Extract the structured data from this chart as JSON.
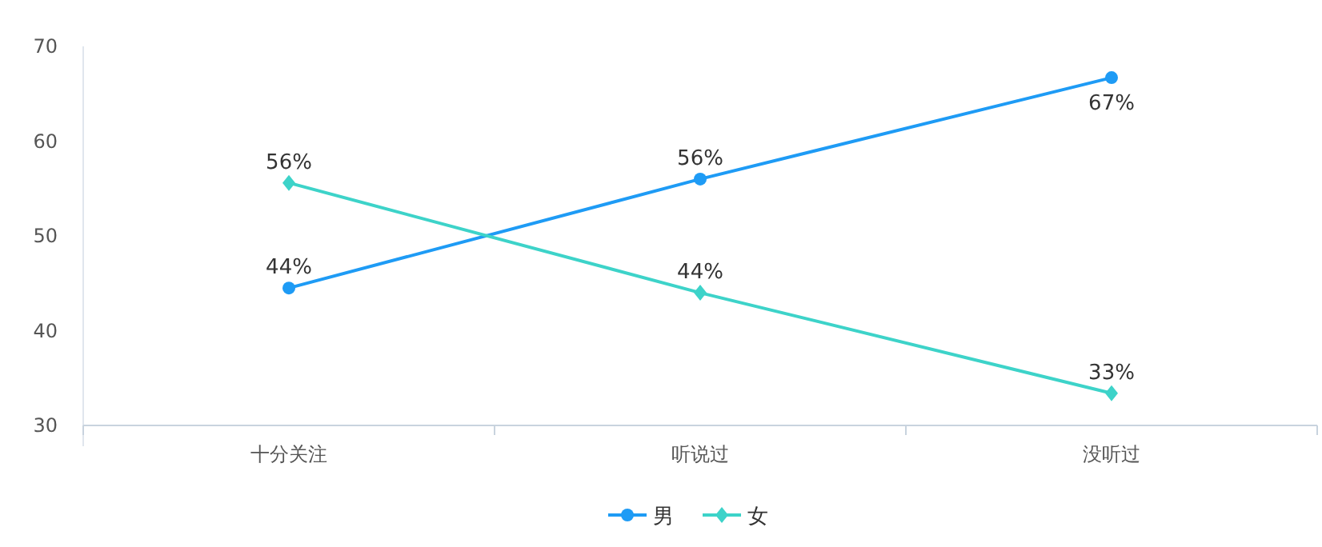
{
  "chart_data": {
    "type": "line",
    "categories": [
      "十分关注",
      "听说过",
      "没听过"
    ],
    "series": [
      {
        "name": "男",
        "color": "#1e9bf5",
        "marker": "circle",
        "values": [
          44.5,
          56,
          66.7
        ],
        "value_labels": [
          "44%",
          "56%",
          "67%"
        ]
      },
      {
        "name": "女",
        "color": "#3dd3c9",
        "marker": "diamond",
        "values": [
          55.6,
          44,
          33.4
        ],
        "value_labels": [
          "56%",
          "44%",
          "33%"
        ]
      }
    ],
    "ylim": [
      30,
      70
    ],
    "yticks": [
      30,
      40,
      50,
      60,
      70
    ],
    "grid": false,
    "legend": "bottom"
  }
}
